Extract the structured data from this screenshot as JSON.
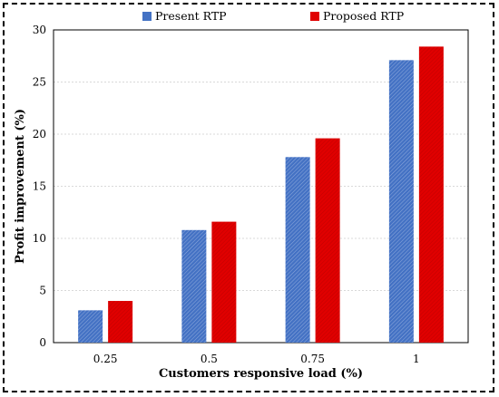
{
  "chart_data": {
    "type": "bar",
    "categories": [
      "0.25",
      "0.5",
      "0.75",
      "1"
    ],
    "series": [
      {
        "name": "Present RTP",
        "values": [
          3.1,
          10.8,
          17.8,
          27.1
        ],
        "color": "#4472C4"
      },
      {
        "name": "Proposed RTP",
        "values": [
          4.0,
          11.6,
          19.6,
          28.4
        ],
        "color": "#E00000"
      }
    ],
    "xlabel": "Customers responsive load (%)",
    "ylabel": "Profit improvement (%)",
    "ylim": [
      0,
      30
    ],
    "yticks": [
      0,
      5,
      10,
      15,
      20,
      25,
      30
    ],
    "grid": true,
    "legend": "top"
  }
}
